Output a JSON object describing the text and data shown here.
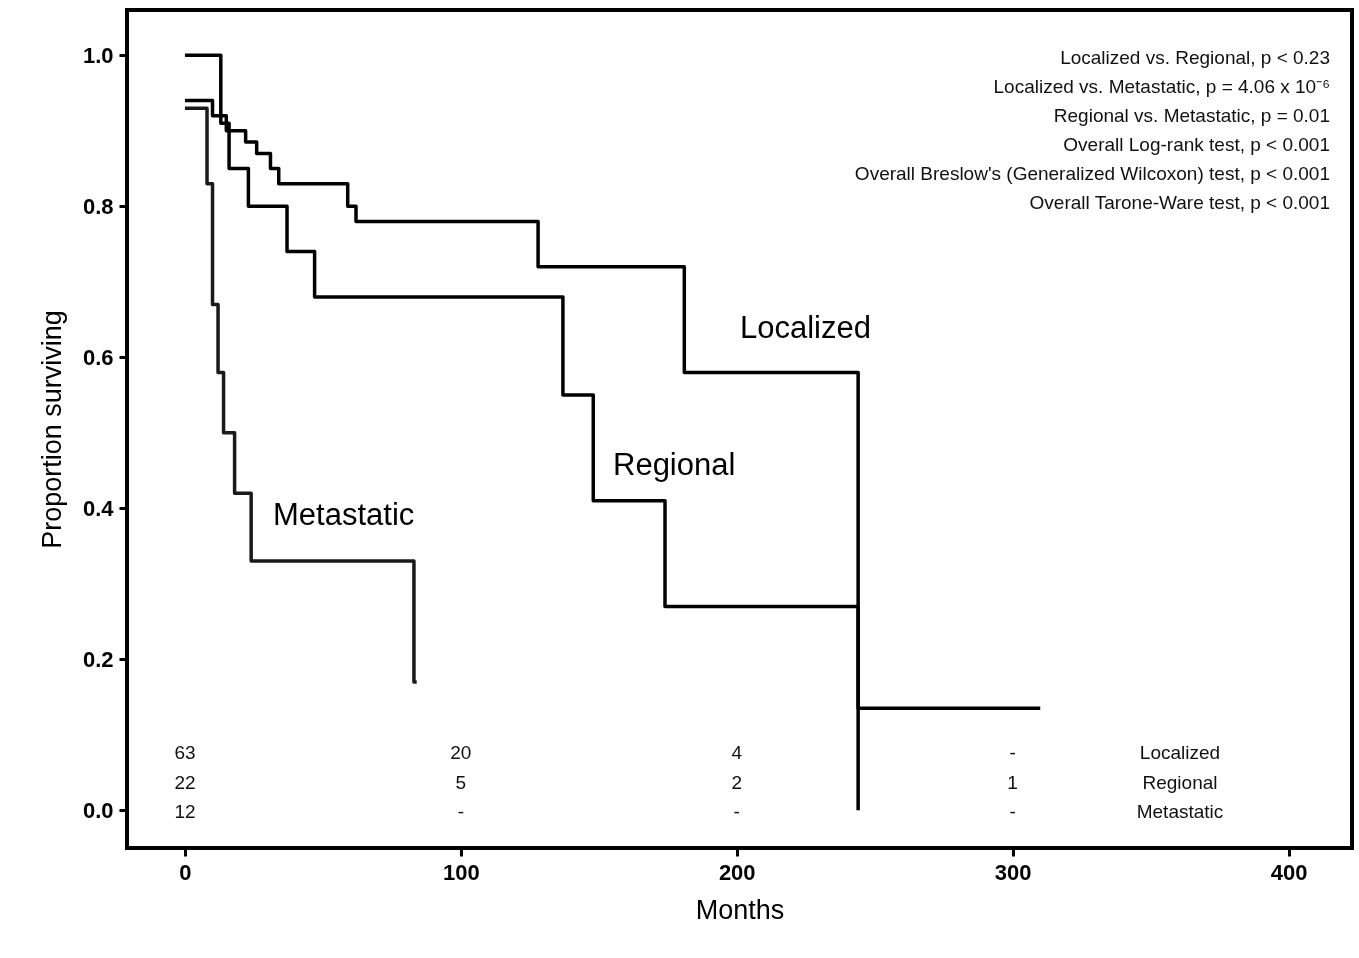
{
  "chart_data": {
    "type": "step",
    "xlabel": "Months",
    "ylabel": "Proportion surviving",
    "xlim": [
      -21,
      423
    ],
    "ylim": [
      -0.05,
      1.06
    ],
    "xticks": [
      0,
      100,
      200,
      300,
      400
    ],
    "yticks": [
      {
        "value": 0,
        "label": "0.0"
      },
      0.2,
      0.4,
      0.6,
      0.8,
      {
        "value": 1,
        "label": "1.0"
      }
    ],
    "series": [
      {
        "name": "Localized",
        "color": "#000000",
        "x": [
          0,
          10,
          15,
          22,
          26,
          31,
          34,
          59,
          62,
          128,
          181,
          244
        ],
        "values": [
          0.94,
          0.92,
          0.9,
          0.885,
          0.87,
          0.85,
          0.83,
          0.8,
          0.78,
          0.72,
          0.58,
          0
        ]
      },
      {
        "name": "Regional",
        "color": "#000000",
        "x": [
          0,
          13,
          16,
          23,
          37,
          47,
          137,
          148,
          174,
          244,
          310
        ],
        "values": [
          1.0,
          0.91,
          0.85,
          0.8,
          0.74,
          0.68,
          0.55,
          0.41,
          0.27,
          0.135,
          0.135
        ]
      },
      {
        "name": "Metastatic",
        "color": "#1a1a1a",
        "x": [
          0,
          8,
          10,
          12,
          14,
          18,
          24,
          83,
          84
        ],
        "values": [
          0.93,
          0.83,
          0.67,
          0.58,
          0.5,
          0.42,
          0.33,
          0.17,
          0.17
        ]
      }
    ],
    "annotations": [
      "Localized vs. Regional, p < 0.23",
      "Localized vs. Metastatic, p = 4.06 x 10⁻⁶",
      "Regional vs. Metastatic, p = 0.01",
      "Overall Log-rank test, p < 0.001",
      "Overall Breslow's (Generalized Wilcoxon) test, p < 0.001",
      "Overall Tarone-Ware test, p < 0.001",
      "63",
      "20",
      "4",
      "-",
      "22",
      "5",
      "2",
      "1",
      "12",
      "-",
      "-",
      "-"
    ]
  }
}
